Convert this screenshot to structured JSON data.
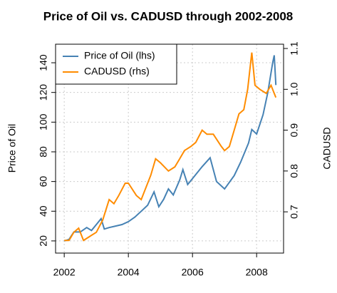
{
  "chart_data": {
    "type": "line",
    "title": "Price of Oil vs. CADUSD through 2002-2008",
    "y_label": "Price of Oil",
    "y2_label": "CADUSD",
    "xlim": [
      2001.73,
      2008.84
    ],
    "xticks": [
      2002,
      2004,
      2006,
      2008
    ],
    "ylim": [
      11.8,
      152.5
    ],
    "yticks": [
      20,
      40,
      60,
      80,
      100,
      120,
      140
    ],
    "y2lim": [
      0.599,
      1.1105
    ],
    "y2ticks": [
      0.7,
      0.8,
      0.9,
      {
        "value": 1,
        "label": "1.0"
      },
      1.1
    ],
    "grid": true,
    "legend": "top-left",
    "series": [
      {
        "name": "Price of Oil (lhs)",
        "color": "#4682b4",
        "x": [
          2002.0,
          2002.15,
          2002.3,
          2002.5,
          2002.7,
          2002.85,
          2003.0,
          2003.15,
          2003.25,
          2003.4,
          2003.6,
          2003.8,
          2004.0,
          2004.2,
          2004.4,
          2004.6,
          2004.8,
          2004.95,
          2005.1,
          2005.25,
          2005.4,
          2005.6,
          2005.7,
          2005.85,
          2006.0,
          2006.3,
          2006.55,
          2006.75,
          2007.0,
          2007.1,
          2007.3,
          2007.5,
          2007.75,
          2007.85,
          2008.0,
          2008.2,
          2008.35,
          2008.5,
          2008.55,
          2008.6
        ],
        "values": [
          20,
          21,
          26,
          26,
          29,
          27,
          31,
          35,
          28,
          29,
          30,
          31,
          33,
          36,
          40,
          44,
          53,
          43,
          48,
          55,
          51,
          61,
          68,
          58,
          62,
          70,
          76,
          60,
          55,
          58,
          64,
          73,
          86,
          95,
          92,
          105,
          120,
          140,
          145,
          125
        ]
      },
      {
        "name": "CADUSD (rhs)",
        "color": "#ff8c00",
        "axis": "y2",
        "x": [
          2002.0,
          2002.15,
          2002.3,
          2002.45,
          2002.6,
          2002.8,
          2003.0,
          2003.2,
          2003.4,
          2003.55,
          2003.7,
          2003.9,
          2004.0,
          2004.25,
          2004.4,
          2004.7,
          2004.85,
          2005.0,
          2005.25,
          2005.45,
          2005.6,
          2005.75,
          2005.95,
          2006.1,
          2006.3,
          2006.45,
          2006.65,
          2006.9,
          2007.0,
          2007.15,
          2007.3,
          2007.45,
          2007.6,
          2007.72,
          2007.85,
          2007.95,
          2008.1,
          2008.3,
          2008.45,
          2008.6
        ],
        "values": [
          0.63,
          0.63,
          0.65,
          0.66,
          0.63,
          0.64,
          0.65,
          0.68,
          0.73,
          0.72,
          0.74,
          0.77,
          0.77,
          0.74,
          0.73,
          0.79,
          0.83,
          0.82,
          0.8,
          0.81,
          0.83,
          0.85,
          0.86,
          0.87,
          0.9,
          0.89,
          0.89,
          0.86,
          0.85,
          0.86,
          0.9,
          0.94,
          0.95,
          1.0,
          1.09,
          1.01,
          1.0,
          0.99,
          1.01,
          0.98
        ]
      }
    ]
  }
}
